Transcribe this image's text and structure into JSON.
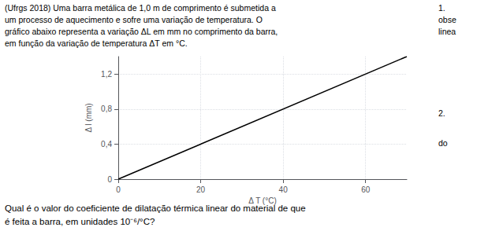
{
  "chart_data": {
    "type": "line",
    "x": [
      0,
      70
    ],
    "values": [
      0,
      1.4
    ],
    "color": "#000000",
    "xlabel": "Δ T (°C)",
    "ylabel": "Δ l (mm)",
    "xlim": [
      0,
      70
    ],
    "ylim": [
      0,
      1.4
    ],
    "xticks": [
      0,
      20,
      40,
      60
    ],
    "yticks": [
      0,
      {
        "value": 0.4,
        "label": "0,4"
      },
      {
        "value": 0.8,
        "label": "0,8"
      },
      {
        "value": 1.2,
        "label": "1,2"
      }
    ],
    "grid": true,
    "annotations": [
      "(Ufrgs 2018) Uma barra metálica de 1,0 m de comprimento é submetida a",
      "um processo de aquecimento e sofre uma variação de temperatura. O",
      "gráfico abaixo representa a variação ΔL em mm no comprimento da barra,",
      "em função da variação de temperatura ΔT em °C.",
      "1.",
      "obse",
      "linea",
      "2.",
      "do",
      "Qual é o valor do coeficiente de dilatação térmica linear do material de que",
      "é feita a barra, em unidades 10⁻⁶/°C?"
    ]
  }
}
